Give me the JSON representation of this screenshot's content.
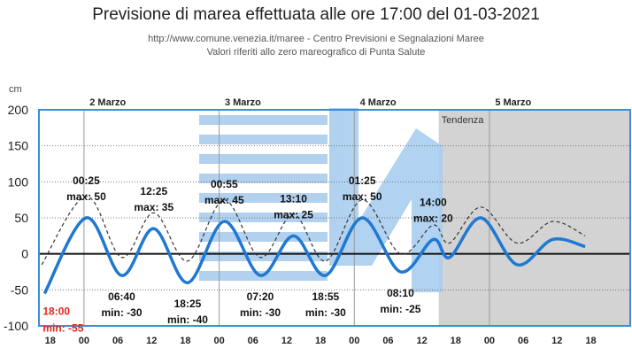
{
  "header": {
    "title": "Previsione di marea effettuata alle ore 17:00 del 01-03-2021",
    "subtitle1": "http://www.comune.venezia.it/maree - Centro Previsioni e Segnalazioni Maree",
    "subtitle2": "Valori riferiti allo zero mareografico di Punta Salute"
  },
  "colors": {
    "forecast": "#1f78d1",
    "dashed": "#333333",
    "tendenza_bg": "#d3d3d3",
    "frame": "#3c8ddc",
    "min_highlight": "#e8241c",
    "watermark": "#a9cdee"
  },
  "chart_data": {
    "type": "line",
    "ylabel": "cm",
    "ylim": [
      -100,
      200
    ],
    "yticks": [
      -100,
      -50,
      0,
      50,
      100,
      150,
      200
    ],
    "xlim_hours": [
      -8,
      97
    ],
    "xticks": [
      "18",
      "00",
      "06",
      "12",
      "18",
      "00",
      "06",
      "12",
      "18",
      "00",
      "06",
      "12",
      "18",
      "00",
      "06",
      "12",
      "18"
    ],
    "days": [
      "2 Marzo",
      "3 Marzo",
      "4 Marzo",
      "5 Marzo"
    ],
    "tendenza_label": "Tendenza",
    "tendenza_start_hour": 63,
    "grid": true,
    "series": [
      {
        "style": "solid",
        "points": [
          [
            -7.0,
            -55
          ],
          [
            0.4,
            50
          ],
          [
            6.7,
            -30
          ],
          [
            12.4,
            35
          ],
          [
            18.4,
            -40
          ],
          [
            24.9,
            45
          ],
          [
            31.3,
            -30
          ],
          [
            37.2,
            25
          ],
          [
            42.9,
            -30
          ],
          [
            49.4,
            50
          ],
          [
            56.2,
            -25
          ],
          [
            62.0,
            20
          ],
          [
            64.9,
            -5
          ],
          [
            70.5,
            50
          ],
          [
            76.9,
            -15
          ],
          [
            83.2,
            20
          ],
          [
            89.0,
            10
          ]
        ]
      },
      {
        "style": "dashed",
        "points": [
          [
            -7.5,
            -15
          ],
          [
            0.4,
            80
          ],
          [
            6.7,
            -5
          ],
          [
            12.4,
            57
          ],
          [
            18.4,
            -10
          ],
          [
            24.9,
            75
          ],
          [
            31.3,
            -5
          ],
          [
            37.2,
            55
          ],
          [
            42.9,
            -10
          ],
          [
            49.4,
            75
          ],
          [
            56.2,
            0
          ],
          [
            62.0,
            40
          ],
          [
            64.9,
            15
          ],
          [
            70.5,
            65
          ],
          [
            76.9,
            15
          ],
          [
            83.2,
            45
          ],
          [
            89.0,
            25
          ]
        ]
      }
    ],
    "annotations": [
      {
        "time": "18:00",
        "label": "min: -55",
        "hour": -7.0,
        "value": -55,
        "highlight": true
      },
      {
        "time": "00:25",
        "label": "max: 50",
        "hour": 0.4,
        "value": 50
      },
      {
        "time": "06:40",
        "label": "min: -30",
        "hour": 6.7,
        "value": -30
      },
      {
        "time": "12:25",
        "label": "max: 35",
        "hour": 12.4,
        "value": 35
      },
      {
        "time": "18:25",
        "label": "min: -40",
        "hour": 18.4,
        "value": -40
      },
      {
        "time": "00:55",
        "label": "max: 45",
        "hour": 24.9,
        "value": 45
      },
      {
        "time": "07:20",
        "label": "min: -30",
        "hour": 31.3,
        "value": -30
      },
      {
        "time": "13:10",
        "label": "max: 25",
        "hour": 37.2,
        "value": 25
      },
      {
        "time": "18:55",
        "label": "min: -30",
        "hour": 42.9,
        "value": -30
      },
      {
        "time": "01:25",
        "label": "max: 50",
        "hour": 49.4,
        "value": 50
      },
      {
        "time": "08:10",
        "label": "min: -25",
        "hour": 56.2,
        "value": -25
      },
      {
        "time": "14:00",
        "label": "max: 20",
        "hour": 62.0,
        "value": 20
      }
    ]
  }
}
